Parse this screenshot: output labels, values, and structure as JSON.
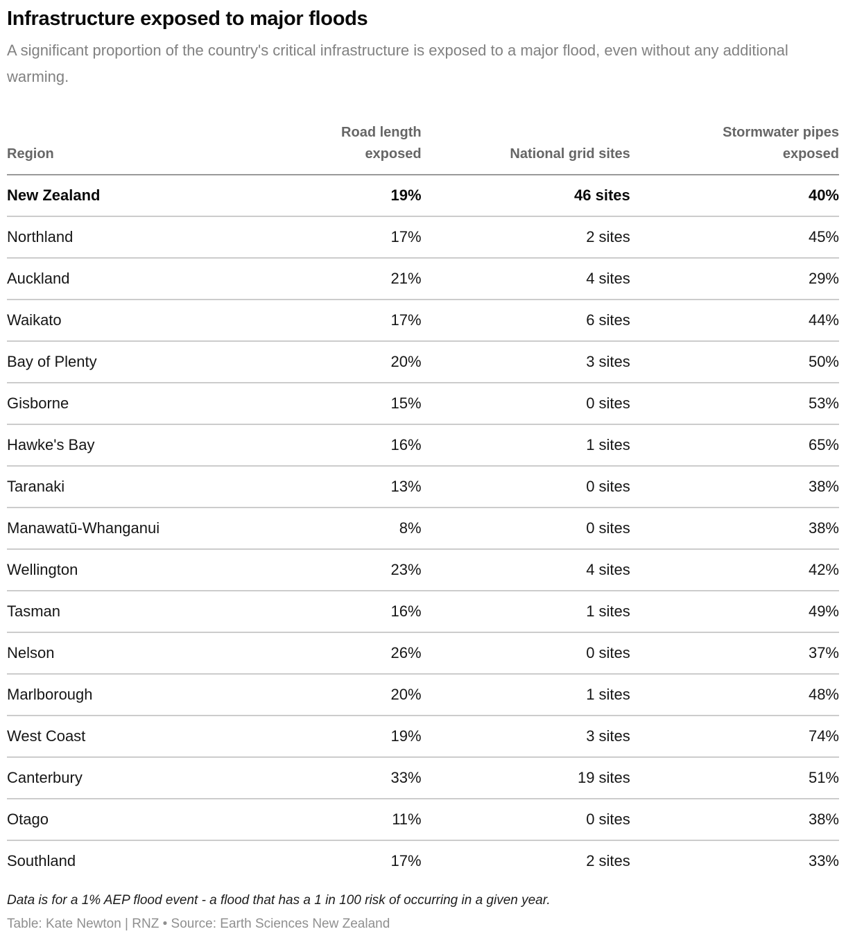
{
  "chart_data": {
    "type": "table",
    "title": "Infrastructure exposed to major floods",
    "subtitle": "A significant proportion of the country's critical infrastructure is exposed to a major flood, even without any additional warming.",
    "columns": [
      "Region",
      "Road length exposed",
      "National grid sites",
      "Stormwater pipes exposed"
    ],
    "rows": [
      {
        "region": "New Zealand",
        "road_length_exposed": "19%",
        "national_grid_sites": "46 sites",
        "stormwater_pipes_exposed": "40%",
        "is_total": true
      },
      {
        "region": "Northland",
        "road_length_exposed": "17%",
        "national_grid_sites": "2 sites",
        "stormwater_pipes_exposed": "45%",
        "is_total": false
      },
      {
        "region": "Auckland",
        "road_length_exposed": "21%",
        "national_grid_sites": "4 sites",
        "stormwater_pipes_exposed": "29%",
        "is_total": false
      },
      {
        "region": "Waikato",
        "road_length_exposed": "17%",
        "national_grid_sites": "6 sites",
        "stormwater_pipes_exposed": "44%",
        "is_total": false
      },
      {
        "region": "Bay of Plenty",
        "road_length_exposed": "20%",
        "national_grid_sites": "3 sites",
        "stormwater_pipes_exposed": "50%",
        "is_total": false
      },
      {
        "region": "Gisborne",
        "road_length_exposed": "15%",
        "national_grid_sites": "0 sites",
        "stormwater_pipes_exposed": "53%",
        "is_total": false
      },
      {
        "region": "Hawke's Bay",
        "road_length_exposed": "16%",
        "national_grid_sites": "1 sites",
        "stormwater_pipes_exposed": "65%",
        "is_total": false
      },
      {
        "region": "Taranaki",
        "road_length_exposed": "13%",
        "national_grid_sites": "0 sites",
        "stormwater_pipes_exposed": "38%",
        "is_total": false
      },
      {
        "region": "Manawatū-Whanganui",
        "road_length_exposed": "8%",
        "national_grid_sites": "0 sites",
        "stormwater_pipes_exposed": "38%",
        "is_total": false
      },
      {
        "region": "Wellington",
        "road_length_exposed": "23%",
        "national_grid_sites": "4 sites",
        "stormwater_pipes_exposed": "42%",
        "is_total": false
      },
      {
        "region": "Tasman",
        "road_length_exposed": "16%",
        "national_grid_sites": "1 sites",
        "stormwater_pipes_exposed": "49%",
        "is_total": false
      },
      {
        "region": "Nelson",
        "road_length_exposed": "26%",
        "national_grid_sites": "0 sites",
        "stormwater_pipes_exposed": "37%",
        "is_total": false
      },
      {
        "region": "Marlborough",
        "road_length_exposed": "20%",
        "national_grid_sites": "1 sites",
        "stormwater_pipes_exposed": "48%",
        "is_total": false
      },
      {
        "region": "West Coast",
        "road_length_exposed": "19%",
        "national_grid_sites": "3 sites",
        "stormwater_pipes_exposed": "74%",
        "is_total": false
      },
      {
        "region": "Canterbury",
        "road_length_exposed": "33%",
        "national_grid_sites": "19 sites",
        "stormwater_pipes_exposed": "51%",
        "is_total": false
      },
      {
        "region": "Otago",
        "road_length_exposed": "11%",
        "national_grid_sites": "0 sites",
        "stormwater_pipes_exposed": "38%",
        "is_total": false
      },
      {
        "region": "Southland",
        "road_length_exposed": "17%",
        "national_grid_sites": "2 sites",
        "stormwater_pipes_exposed": "33%",
        "is_total": false
      }
    ],
    "footnote": "Data is for a 1% AEP flood event - a flood that has a 1 in 100 risk of occurring in a given year.",
    "credit": "Table: Kate Newton | RNZ  •  Source: Earth Sciences New Zealand",
    "layout_hints": {
      "numeric_columns_alignment": "right",
      "total_row_position": "first",
      "grid": "horizontal-separators-only"
    }
  },
  "colors": {
    "background": "#ffffff",
    "title_text": "#0a0a0a",
    "subtitle_text": "#818181",
    "header_text": "#666666",
    "header_border": "#999999",
    "row_border": "#cccccc",
    "body_text": "#161616",
    "credit_text": "#8f8f8f"
  }
}
